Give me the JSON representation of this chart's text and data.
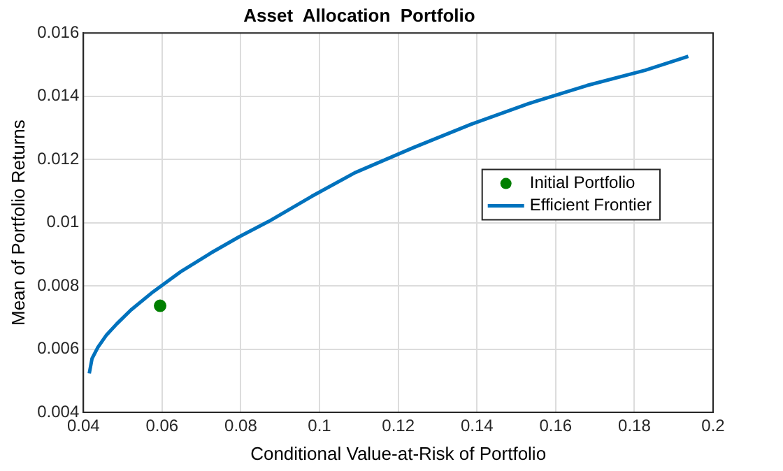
{
  "chart_data": {
    "type": "line",
    "title": "Asset  Allocation  Portfolio",
    "xlabel": "Conditional Value-at-Risk of Portfolio",
    "ylabel": "Mean of Portfolio Returns",
    "xlim": [
      0.04,
      0.2
    ],
    "xticks": [
      0.04,
      0.06,
      0.08,
      0.1,
      0.12,
      0.14,
      0.16,
      0.18,
      0.2
    ],
    "ylim": [
      0.004,
      0.016
    ],
    "yticks": [
      0.004,
      0.006,
      0.008,
      0.01,
      0.012,
      0.014,
      0.016
    ],
    "grid": true,
    "legend": "right",
    "series": [
      {
        "name": "Initial Portfolio",
        "type": "scatter",
        "color": "#007f00",
        "marker": "circle",
        "x": [
          0.0595
        ],
        "values": [
          0.00737
        ]
      },
      {
        "name": "Efficient Frontier",
        "type": "line",
        "color": "#0072bd",
        "marker": "none",
        "line_style": "solid",
        "x": [
          0.0415,
          0.0422,
          0.0437,
          0.0459,
          0.0485,
          0.0521,
          0.0577,
          0.065,
          0.0724,
          0.0797,
          0.0871,
          0.098,
          0.109,
          0.1238,
          0.1385,
          0.1532,
          0.168,
          0.1827,
          0.1937
        ],
        "values": [
          0.00523,
          0.0057,
          0.00606,
          0.00645,
          0.0068,
          0.00724,
          0.00781,
          0.00847,
          0.00904,
          0.00956,
          0.01004,
          0.01083,
          0.01158,
          0.01237,
          0.01311,
          0.01377,
          0.01434,
          0.01482,
          0.01526
        ]
      }
    ]
  }
}
